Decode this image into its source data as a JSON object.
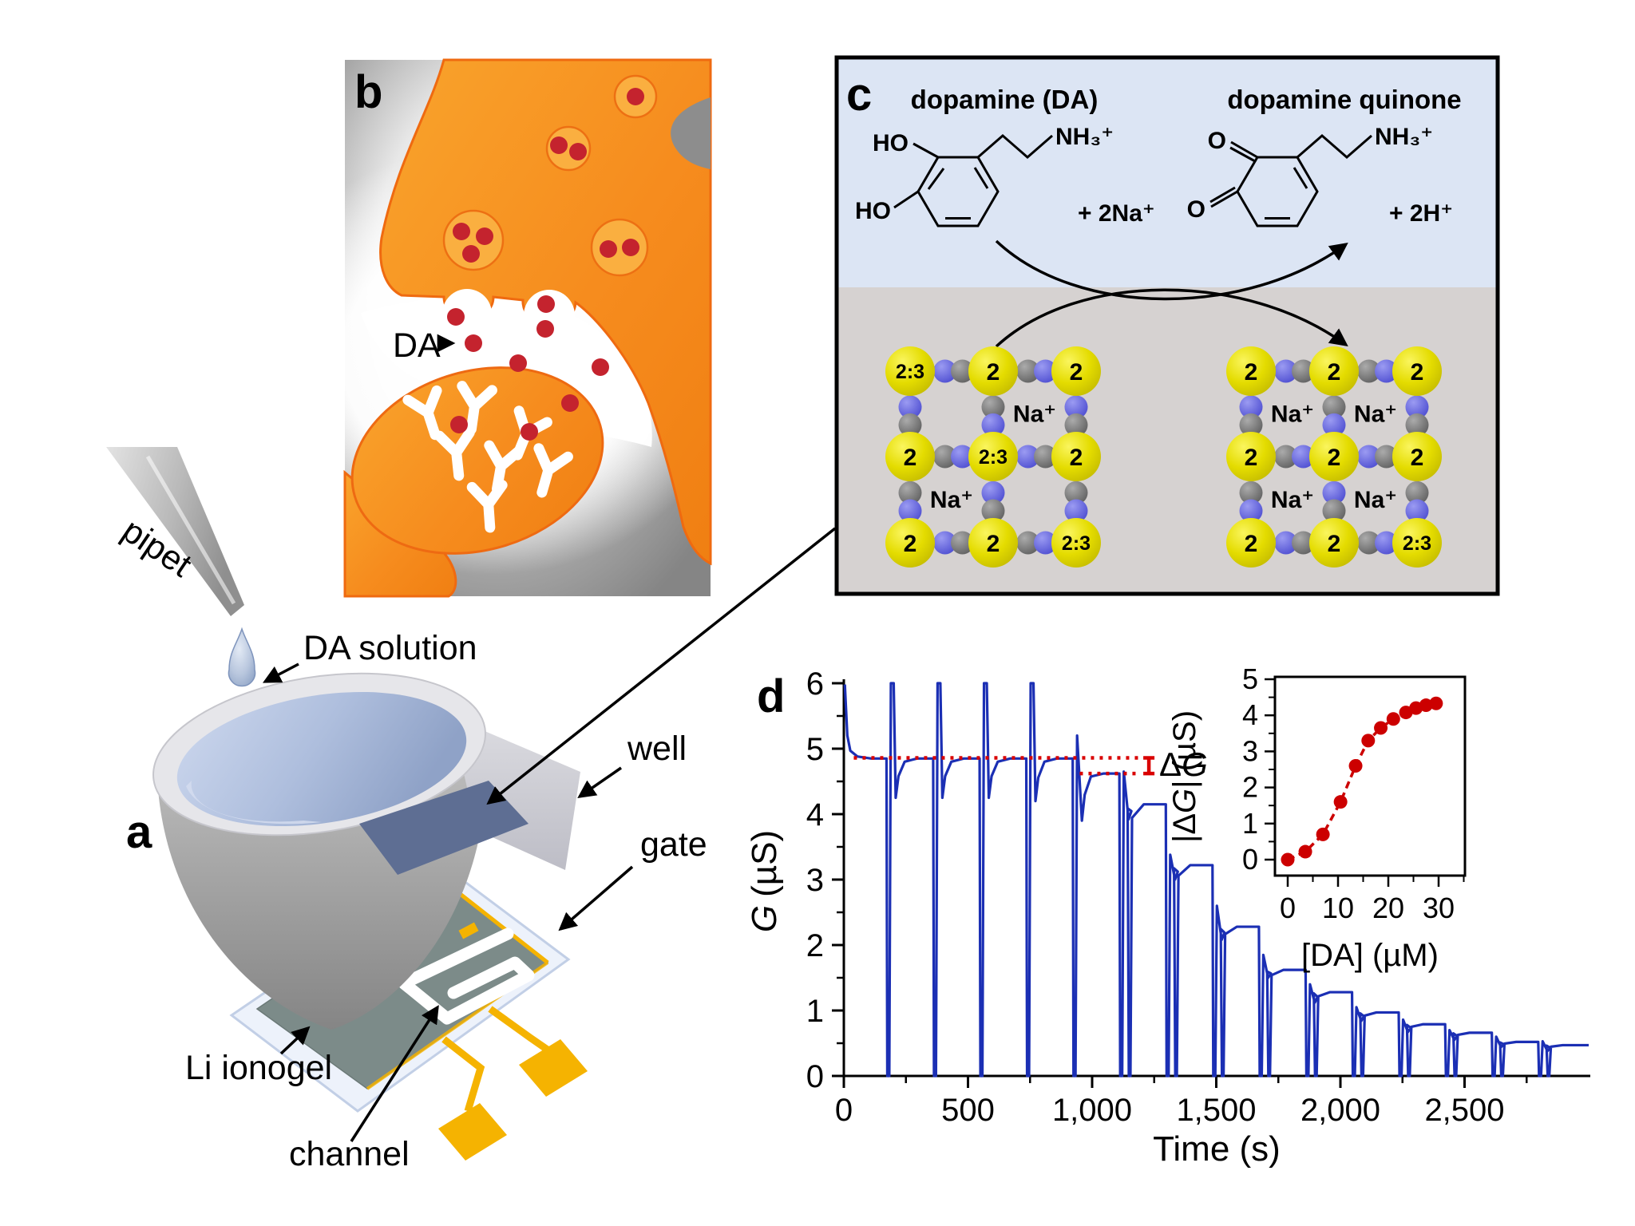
{
  "figure": {
    "panel_labels": {
      "a": "a",
      "b": "b",
      "c": "c",
      "d": "d"
    },
    "panel_a": {
      "pipet": "pipet",
      "da_solution": "DA solution",
      "well": "well",
      "gate": "gate",
      "li_ionogel": "Li ionogel",
      "channel": "channel"
    },
    "panel_b": {
      "da": "DA"
    },
    "panel_c": {
      "title_da": "dopamine (DA)",
      "title_quinone": "dopamine quinone",
      "ho_top": "HO",
      "ho_bottom": "HO",
      "o_top": "O",
      "o_bottom": "O",
      "nh3_left": "NH₃⁺",
      "nh3_right": "NH₃⁺",
      "plus_2na": "+ 2Na⁺",
      "plus_2h": "+ 2H⁺",
      "na": "Na⁺",
      "lattice_left": {
        "nodes": [
          [
            "2:3",
            "2",
            "2"
          ],
          [
            "2",
            "2:3",
            "2"
          ],
          [
            "2",
            "2",
            "2:3"
          ]
        ],
        "na_cells": [
          [
            0,
            1
          ],
          [
            1,
            0
          ]
        ]
      },
      "lattice_right": {
        "nodes": [
          [
            "2",
            "2",
            "2"
          ],
          [
            "2",
            "2",
            "2"
          ],
          [
            "2",
            "2",
            "2:3"
          ]
        ],
        "na_cells": [
          [
            0,
            0
          ],
          [
            0,
            1
          ],
          [
            1,
            0
          ],
          [
            1,
            1
          ]
        ]
      }
    },
    "colors": {
      "trace_blue": "#1B2FB4",
      "annotation_red": "#D90000",
      "inset_red": "#CC0000",
      "neuron_orange": "#F68C1E",
      "vesicle_orange": "#FAAF40",
      "dot_red": "#C4232E",
      "lattice_yellow": "#E4DC00",
      "lattice_blue": "#5C5CE0",
      "lattice_gray": "#6F6F6F",
      "panelc_blue_bg": "#DCE5F4",
      "panelc_gray_bg": "#D6D2D1",
      "gold": "#F5B301",
      "gate_gray": "#7C8B89"
    }
  },
  "chart_data": [
    {
      "type": "line",
      "title": "",
      "xlabel": "Time (s)",
      "ylabel": "G (µS)",
      "ylabel_parts": [
        "G",
        "(µS)"
      ],
      "xlim": [
        0,
        3000
      ],
      "ylim": [
        0,
        6
      ],
      "x_ticks": [
        0,
        500,
        1000,
        1500,
        2000,
        2500
      ],
      "x_tick_labels": [
        "0",
        "500",
        "1,000",
        "1,500",
        "2,000",
        "2,500"
      ],
      "x_minor_step": 250,
      "y_ticks": [
        0,
        1,
        2,
        3,
        4,
        5,
        6
      ],
      "y_tick_labels": [
        "0",
        "1",
        "2",
        "3",
        "4",
        "5",
        "6"
      ],
      "y_minor_step": 0.5,
      "grid": false,
      "series_color": "#1B2FB4",
      "description": "Channel conductance G vs time; stepwise decrease of plateau level after each dopamine addition, with sharp spikes to 0 at each addition.",
      "initial_value": 6,
      "baseline": 4.85,
      "events": [
        {
          "t": 175,
          "top": 6.0,
          "dip": 4.25,
          "plateau": 4.85,
          "double": false
        },
        {
          "t": 363,
          "top": 6.0,
          "dip": 4.25,
          "plateau": 4.85,
          "double": false
        },
        {
          "t": 550,
          "top": 6.0,
          "dip": 4.25,
          "plateau": 4.85,
          "double": false
        },
        {
          "t": 738,
          "top": 6.0,
          "dip": 4.2,
          "plateau": 4.85,
          "double": false
        },
        {
          "t": 925,
          "top": 5.2,
          "dip": 3.9,
          "plateau": 4.62,
          "double": false
        },
        {
          "t": 1113,
          "top": 4.65,
          "dip": 3.92,
          "plateau": 4.15,
          "double": true
        },
        {
          "t": 1300,
          "top": 3.38,
          "dip": 3.0,
          "plateau": 3.22,
          "double": true
        },
        {
          "t": 1488,
          "top": 2.6,
          "dip": 2.08,
          "plateau": 2.28,
          "double": true
        },
        {
          "t": 1675,
          "top": 1.85,
          "dip": 1.5,
          "plateau": 1.62,
          "double": true
        },
        {
          "t": 1863,
          "top": 1.4,
          "dip": 1.12,
          "plateau": 1.28,
          "double": true
        },
        {
          "t": 2050,
          "top": 1.05,
          "dip": 0.84,
          "plateau": 0.97,
          "double": true
        },
        {
          "t": 2238,
          "top": 0.86,
          "dip": 0.67,
          "plateau": 0.79,
          "double": true
        },
        {
          "t": 2425,
          "top": 0.7,
          "dip": 0.55,
          "plateau": 0.66,
          "double": true
        },
        {
          "t": 2613,
          "top": 0.6,
          "dip": 0.44,
          "plateau": 0.52,
          "double": true
        },
        {
          "t": 2800,
          "top": 0.53,
          "dip": 0.38,
          "plateau": 0.47,
          "double": true
        }
      ],
      "annotation": {
        "label": "ΔG",
        "label_parts": [
          "Δ",
          "G"
        ],
        "upper": 4.86,
        "lower": 4.62,
        "upper_span_t": [
          40,
          1190
        ],
        "lower_span_t": [
          950,
          1190
        ],
        "color": "#D90000"
      }
    },
    {
      "type": "scatter",
      "title": "",
      "xlabel": "[DA] (µM)",
      "ylabel": "|ΔG| (µS)",
      "ylabel_parts": [
        "|Δ",
        "G",
        "| (µS)"
      ],
      "xlim": [
        -3,
        35
      ],
      "ylim": [
        -0.6,
        5
      ],
      "x_ticks": [
        0,
        10,
        20,
        30
      ],
      "x_tick_labels": [
        "0",
        "10",
        "20",
        "30"
      ],
      "x_minor_step": 5,
      "y_ticks": [
        0,
        1,
        2,
        3,
        4,
        5
      ],
      "y_tick_labels": [
        "0",
        "1",
        "2",
        "3",
        "4",
        "5"
      ],
      "y_minor_step": 0.5,
      "grid": false,
      "color": "#CC0000",
      "line_style": "dashed",
      "points": [
        [
          0,
          0
        ],
        [
          3.5,
          0.22
        ],
        [
          7,
          0.7
        ],
        [
          10.5,
          1.6
        ],
        [
          13.5,
          2.6
        ],
        [
          16,
          3.3
        ],
        [
          18.5,
          3.65
        ],
        [
          21,
          3.9
        ],
        [
          23.5,
          4.08
        ],
        [
          25.5,
          4.2
        ],
        [
          27.5,
          4.28
        ],
        [
          29.5,
          4.33
        ]
      ]
    }
  ]
}
